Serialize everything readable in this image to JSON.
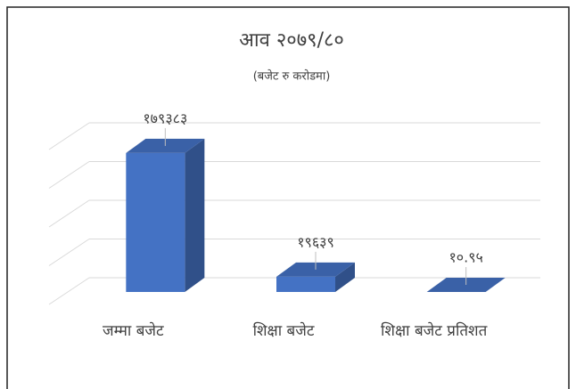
{
  "chart_data": {
    "type": "bar3d",
    "title": "आव २०७९/८०",
    "subtitle": "(बजेट रु  करोडमा)",
    "categories": [
      "जम्मा बजेट",
      "शिक्षा बजेट",
      "शिक्षा बजेट प्रतिशत"
    ],
    "values": [
      179383,
      19639,
      10.95
    ],
    "value_labels": [
      "१७९३८३",
      "१९६३९",
      "१०.९५"
    ],
    "color": "#4472c4",
    "ylim": [
      0,
      200000
    ],
    "yticks": [
      0,
      50000,
      100000,
      150000,
      200000
    ],
    "grid": true
  }
}
